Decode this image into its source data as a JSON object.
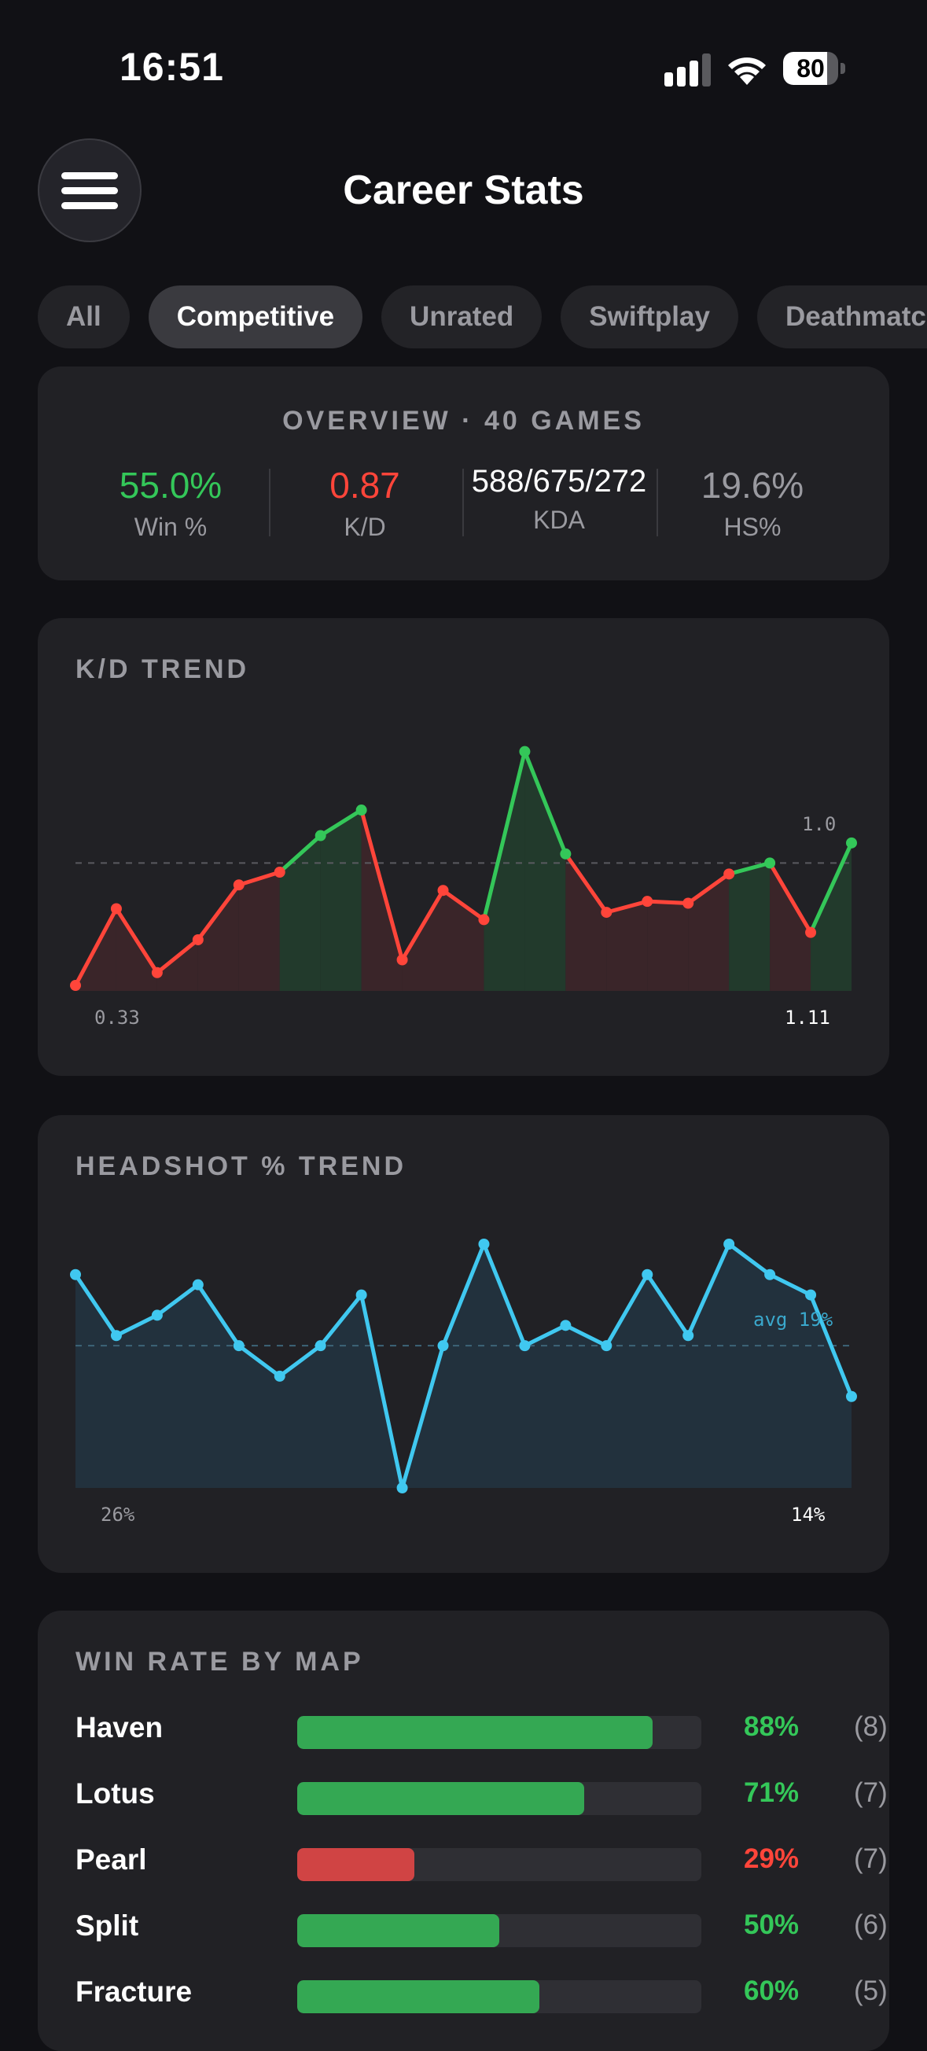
{
  "status_bar": {
    "time": "16:51",
    "battery": "80",
    "battery_level": 0.8
  },
  "header": {
    "title": "Career Stats"
  },
  "tabs": [
    {
      "label": "All",
      "active": false
    },
    {
      "label": "Competitive",
      "active": true
    },
    {
      "label": "Unrated",
      "active": false
    },
    {
      "label": "Swiftplay",
      "active": false
    },
    {
      "label": "Deathmatch",
      "active": false
    }
  ],
  "overview": {
    "title": "OVERVIEW · 40 GAMES",
    "stats": [
      {
        "value": "55.0%",
        "label": "Win %",
        "color": "#34c759"
      },
      {
        "value": "0.87",
        "label": "K/D",
        "color": "#ff453a"
      },
      {
        "value": "588/675/272",
        "label": "KDA",
        "color": "#ffffff"
      },
      {
        "value": "19.6%",
        "label": "HS%",
        "color": "#9a9aa0"
      }
    ]
  },
  "kd_trend": {
    "title": "K/D TREND",
    "reference_label": "1.0",
    "first_label": "0.33",
    "last_label": "1.11"
  },
  "hs_trend": {
    "title": "HEADSHOT % TREND",
    "avg_label": "avg 19%",
    "first_label": "26%",
    "last_label": "14%"
  },
  "map_winrate": {
    "title": "WIN RATE BY MAP",
    "maps": [
      {
        "name": "Haven",
        "pct": "88%",
        "games": "(8)",
        "rate": 0.88,
        "color": "#34a853"
      },
      {
        "name": "Lotus",
        "pct": "71%",
        "games": "(7)",
        "rate": 0.71,
        "color": "#34a853"
      },
      {
        "name": "Pearl",
        "pct": "29%",
        "games": "(7)",
        "rate": 0.29,
        "color": "#d04444"
      },
      {
        "name": "Split",
        "pct": "50%",
        "games": "(6)",
        "rate": 0.5,
        "color": "#34a853"
      },
      {
        "name": "Fracture",
        "pct": "60%",
        "games": "(5)",
        "rate": 0.6,
        "color": "#34a853"
      }
    ]
  },
  "colors": {
    "win": "#34c759",
    "loss": "#ff453a",
    "hs_line": "#40c8f0",
    "card": "#212125",
    "background": "#111115"
  },
  "chart_data": [
    {
      "type": "line",
      "title": "K/D TREND",
      "reference": 1.0,
      "ylim": [
        0.3,
        1.6
      ],
      "grid": false,
      "values": [
        0.33,
        0.75,
        0.4,
        0.58,
        0.88,
        0.95,
        1.15,
        1.29,
        0.47,
        0.85,
        0.69,
        1.61,
        1.05,
        0.73,
        0.79,
        0.78,
        0.94,
        1.0,
        0.62,
        1.11
      ]
    },
    {
      "type": "area",
      "title": "HEADSHOT % TREND",
      "average": 19,
      "ylim": [
        5,
        29
      ],
      "grid": false,
      "values": [
        26,
        20,
        22,
        25,
        19,
        16,
        19,
        24,
        5,
        19,
        29,
        19,
        21,
        19,
        26,
        20,
        29,
        26,
        24,
        14
      ]
    }
  ]
}
